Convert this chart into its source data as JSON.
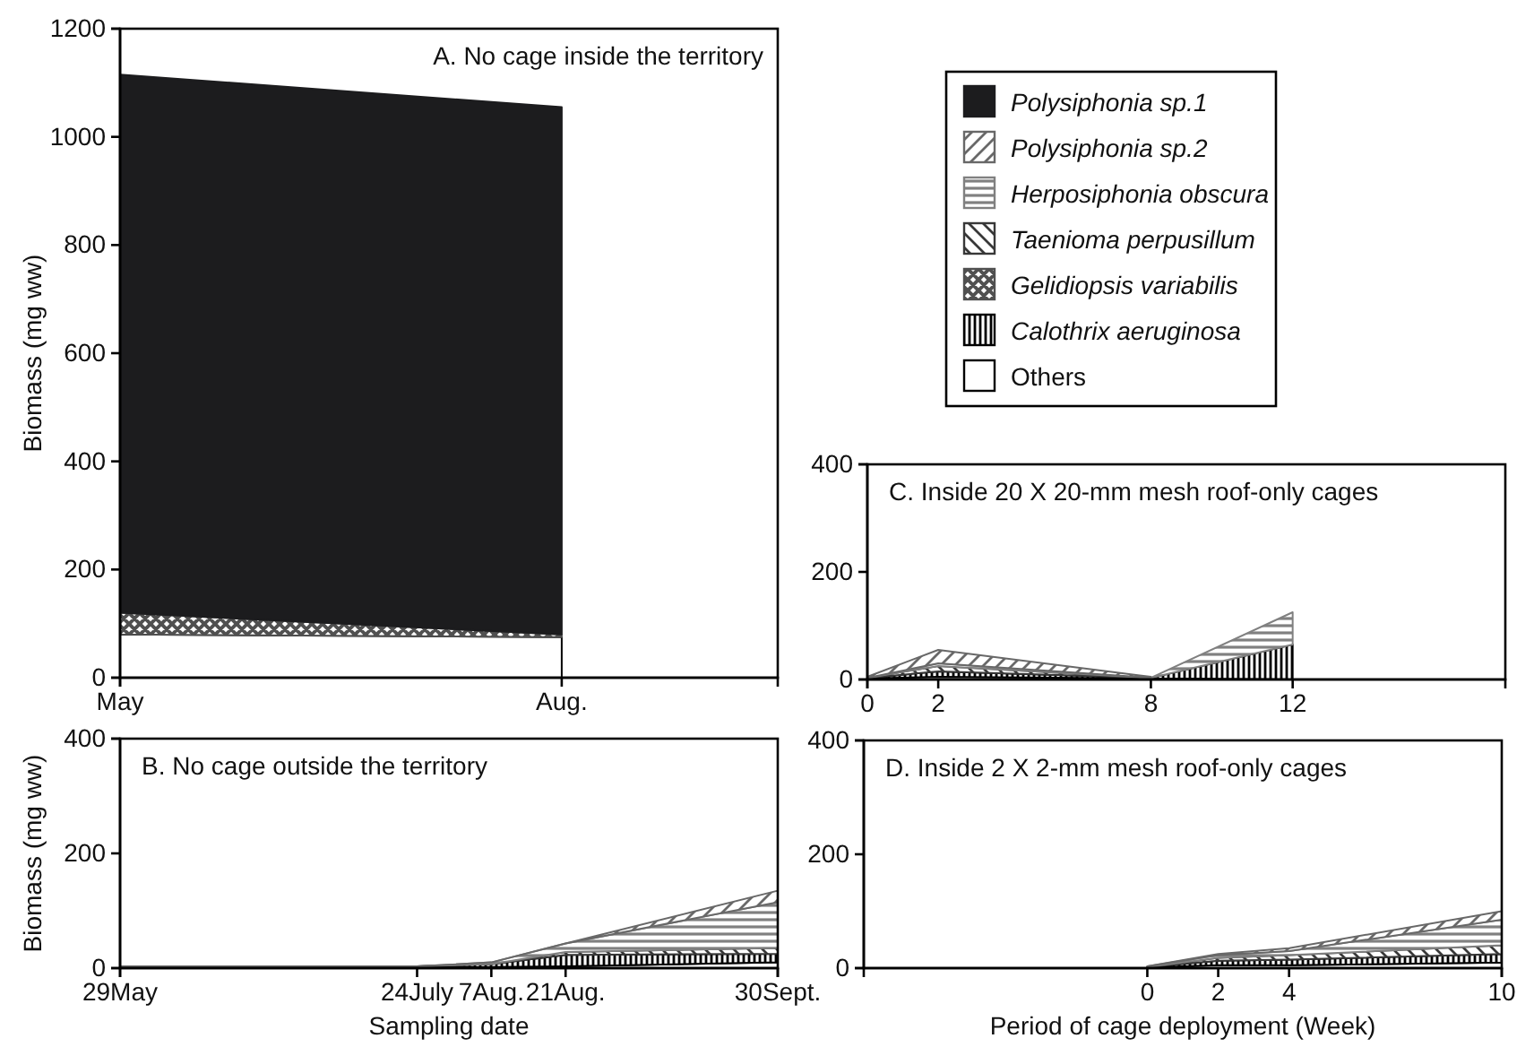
{
  "chart_data": [
    {
      "type": "area",
      "stacked": true,
      "title": "A. No cage inside the territory",
      "ylabel": "Biomass (mg ww)",
      "legend": "right",
      "x": [
        "--05-01",
        "--08-01"
      ],
      "xlim": [
        "--05-01",
        "--09-15"
      ],
      "xticks": [
        {
          "value": "--05-01",
          "label": "May"
        },
        {
          "value": "--08-01",
          "label": "Aug."
        }
      ],
      "ylim": [
        0,
        1200
      ],
      "yticks": [
        0,
        200,
        400,
        600,
        800,
        1000,
        1200
      ],
      "series": [
        {
          "name": "Others",
          "color": "#ffffff",
          "values": [
            80,
            75
          ]
        },
        {
          "name": "Calothrix aeruginosa",
          "color": "#000000",
          "values": [
            null,
            null
          ]
        },
        {
          "name": "Gelidiopsis variabilis",
          "color": "#505050",
          "values": [
            40,
            5
          ]
        },
        {
          "name": "Taenioma perpusillum",
          "color": "#383838",
          "values": [
            null,
            null
          ]
        },
        {
          "name": "Herposiphonia obscura",
          "color": "#808080",
          "values": [
            null,
            null
          ]
        },
        {
          "name": "Polysiphonia sp.2",
          "color": "#686868",
          "values": [
            null,
            null
          ]
        },
        {
          "name": "Polysiphonia sp.1",
          "color": "#1c1c1e",
          "values": [
            995,
            975
          ]
        }
      ]
    },
    {
      "type": "area",
      "stacked": true,
      "title": "B. No cage outside the territory",
      "ylabel": "Biomass (mg ww)",
      "xlabel": "Sampling date",
      "x": [
        "--05-29",
        "--07-24",
        "--08-07",
        "--08-21",
        "--09-30"
      ],
      "xlim": [
        "--05-29",
        "--09-30"
      ],
      "xticks": [
        {
          "value": "--05-29",
          "label": "29May"
        },
        {
          "value": "--07-24",
          "label": "24July"
        },
        {
          "value": "--08-07",
          "label": "7Aug."
        },
        {
          "value": "--08-21",
          "label": "21Aug."
        },
        {
          "value": "--09-30",
          "label": "30Sept."
        }
      ],
      "ylim": [
        0,
        400
      ],
      "yticks": [
        0,
        200,
        400
      ],
      "series": [
        {
          "color": "#ffffff",
          "values": [
            2,
            2,
            2,
            3,
            10
          ]
        },
        {
          "color": "#000000",
          "values": [
            1,
            1,
            5,
            20,
            15
          ]
        },
        {
          "color": "#383838",
          "values": [
            0,
            0,
            0,
            5,
            10
          ]
        },
        {
          "color": "#808080",
          "values": [
            0,
            0,
            3,
            15,
            80
          ]
        },
        {
          "color": "#686868",
          "values": [
            0,
            0,
            0,
            0,
            20
          ]
        }
      ]
    },
    {
      "type": "area",
      "stacked": true,
      "title": "C. Inside 20 X 20-mm mesh roof-only cages",
      "x": [
        0,
        2,
        8,
        12
      ],
      "xlim": [
        0,
        18
      ],
      "xticks": [
        0,
        2,
        8,
        12
      ],
      "ylim": [
        0,
        400
      ],
      "yticks": [
        0,
        200,
        400
      ],
      "series": [
        {
          "color": "#ffffff",
          "values": [
            2,
            5,
            2,
            0
          ]
        },
        {
          "color": "#000000",
          "values": [
            1,
            10,
            1,
            65
          ]
        },
        {
          "color": "#383838",
          "values": [
            0,
            10,
            0,
            null
          ]
        },
        {
          "color": "#808080",
          "values": [
            0,
            5,
            0,
            60
          ]
        },
        {
          "color": "#686868",
          "values": [
            2,
            25,
            2,
            null
          ]
        }
      ]
    },
    {
      "type": "area",
      "stacked": true,
      "title": "D. Inside 2 X 2-mm mesh roof-only cages",
      "xlabel": "Period of cage deployment (Week)",
      "x": [
        0,
        2,
        4,
        10
      ],
      "xlim": [
        -8,
        10
      ],
      "xticks": [
        0,
        2,
        4,
        10
      ],
      "ylim": [
        0,
        400
      ],
      "yticks": [
        0,
        200,
        400
      ],
      "series": [
        {
          "color": "#ffffff",
          "values": [
            1,
            5,
            5,
            10
          ]
        },
        {
          "color": "#000000",
          "values": [
            1,
            8,
            10,
            15
          ]
        },
        {
          "color": "#383838",
          "values": [
            0,
            5,
            8,
            15
          ]
        },
        {
          "color": "#808080",
          "values": [
            1,
            5,
            7,
            45
          ]
        },
        {
          "color": "#686868",
          "values": [
            0,
            2,
            5,
            15
          ]
        }
      ]
    }
  ]
}
